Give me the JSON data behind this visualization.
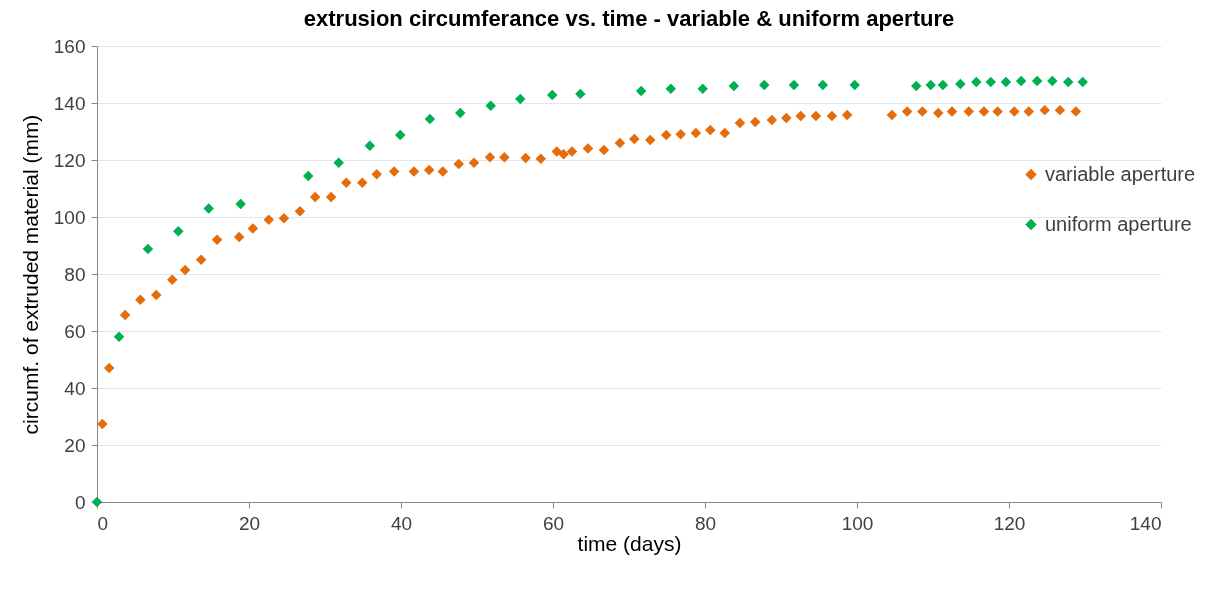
{
  "chart_data": {
    "type": "scatter",
    "title": "extrusion circumferance vs. time - variable & uniform aperture",
    "xlabel": "time (days)",
    "ylabel": "circumf. of extruded material (mm)",
    "xlim": [
      0,
      140
    ],
    "xticks": [
      0,
      20,
      40,
      60,
      80,
      100,
      120,
      140
    ],
    "ylim": [
      0,
      160
    ],
    "yticks": [
      0,
      20,
      40,
      60,
      80,
      100,
      120,
      140,
      160
    ],
    "grid": "y",
    "legend": "right",
    "marker": "diamond",
    "series": [
      {
        "name": "variable aperture",
        "color": "#e46c0a",
        "x": [
          0.7,
          1.6,
          3.7,
          5.7,
          7.8,
          9.9,
          11.6,
          13.7,
          15.8,
          18.7,
          20.5,
          22.6,
          24.6,
          26.7,
          28.7,
          30.8,
          32.8,
          34.9,
          36.8,
          39.1,
          41.7,
          43.7,
          45.5,
          47.6,
          49.6,
          51.7,
          53.6,
          56.4,
          58.4,
          60.5,
          61.4,
          62.5,
          64.6,
          66.7,
          68.8,
          70.7,
          72.8,
          74.9,
          76.8,
          78.8,
          80.7,
          82.6,
          84.6,
          86.6,
          88.8,
          90.7,
          92.6,
          94.6,
          96.7,
          98.7,
          104.6,
          106.6,
          108.6,
          110.7,
          112.5,
          114.7,
          116.7,
          118.5,
          120.7,
          122.6,
          124.7,
          126.7,
          128.8
        ],
        "values": [
          27.4,
          47,
          65.6,
          71,
          72.6,
          78,
          81.4,
          85,
          92,
          93,
          96,
          99,
          99.6,
          102,
          107,
          107,
          112,
          112,
          115,
          116,
          116,
          116.5,
          116,
          118.6,
          119,
          121,
          121,
          120.7,
          120.4,
          123,
          122,
          123,
          124,
          123.5,
          126,
          127.4,
          127,
          128.8,
          129,
          129.5,
          130.5,
          129.5,
          133,
          133.3,
          134,
          134.7,
          135.4,
          135.4,
          135.4,
          135.8,
          135.8,
          137,
          137,
          136.5,
          137,
          137,
          137,
          137,
          137,
          137,
          137.5,
          137.5,
          137
        ]
      },
      {
        "name": "uniform aperture",
        "color": "#00b050",
        "x": [
          0,
          2.9,
          6.7,
          10.7,
          14.7,
          18.9,
          27.8,
          31.8,
          35.9,
          39.9,
          43.8,
          47.8,
          51.8,
          55.7,
          59.9,
          63.6,
          71.6,
          75.5,
          79.7,
          83.8,
          87.8,
          91.7,
          95.5,
          99.7,
          107.8,
          109.7,
          111.3,
          113.6,
          115.7,
          117.6,
          119.6,
          121.6,
          123.7,
          125.7,
          127.8,
          129.7
        ],
        "values": [
          0,
          58,
          88.8,
          95,
          103,
          104.6,
          114.4,
          119,
          125,
          128.8,
          134.4,
          136.5,
          139,
          141.4,
          142.8,
          143.2,
          144.2,
          145,
          145,
          146,
          146.3,
          146.3,
          146.3,
          146.3,
          146,
          146.3,
          146.3,
          146.7,
          147.4,
          147.4,
          147.4,
          147.7,
          147.7,
          147.7,
          147.4,
          147.4
        ]
      }
    ]
  }
}
